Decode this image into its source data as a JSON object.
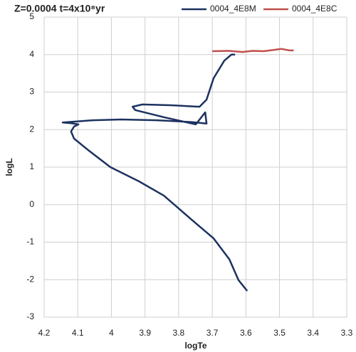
{
  "chart_data": {
    "type": "line",
    "title": "Z=0.0004 t=4x10⁸yr",
    "x_label": "logTe",
    "y_label": "logL",
    "xlim": [
      4.2,
      3.3
    ],
    "xticks": [
      4.2,
      4.1,
      4,
      3.9,
      3.8,
      3.7,
      3.6,
      3.5,
      3.4,
      3.3
    ],
    "ylim": [
      -3,
      5
    ],
    "yticks": [
      -3,
      -2,
      -1,
      0,
      1,
      2,
      3,
      4,
      5
    ],
    "grid": true,
    "legend": "top",
    "series": [
      {
        "name": "0004_4E8M",
        "color": "#1c3260",
        "x": [
          3.596,
          3.622,
          3.649,
          3.696,
          3.759,
          3.844,
          3.918,
          4.003,
          4.067,
          4.111,
          4.12,
          4.111,
          4.098,
          4.12,
          4.145,
          4.098,
          4.055,
          3.971,
          3.865,
          3.759,
          3.717,
          3.721,
          3.749,
          3.844,
          3.929,
          3.937,
          3.908,
          3.823,
          3.738,
          3.717,
          3.696,
          3.664,
          3.643,
          3.632
        ],
        "values": [
          -2.3,
          -2.01,
          -1.46,
          -0.9,
          -0.42,
          0.24,
          0.62,
          1.0,
          1.44,
          1.76,
          1.95,
          2.08,
          2.14,
          2.17,
          2.19,
          2.22,
          2.25,
          2.27,
          2.25,
          2.2,
          2.16,
          2.46,
          2.14,
          2.33,
          2.52,
          2.61,
          2.67,
          2.65,
          2.61,
          2.8,
          3.37,
          3.84,
          4.0,
          4.0
        ]
      },
      {
        "name": "0004_4E8C",
        "color": "#c0504d",
        "x": [
          3.7,
          3.65,
          3.61,
          3.58,
          3.547,
          3.52,
          3.494,
          3.47,
          3.458
        ],
        "values": [
          4.09,
          4.1,
          4.07,
          4.1,
          4.09,
          4.12,
          4.15,
          4.11,
          4.11
        ]
      }
    ]
  }
}
